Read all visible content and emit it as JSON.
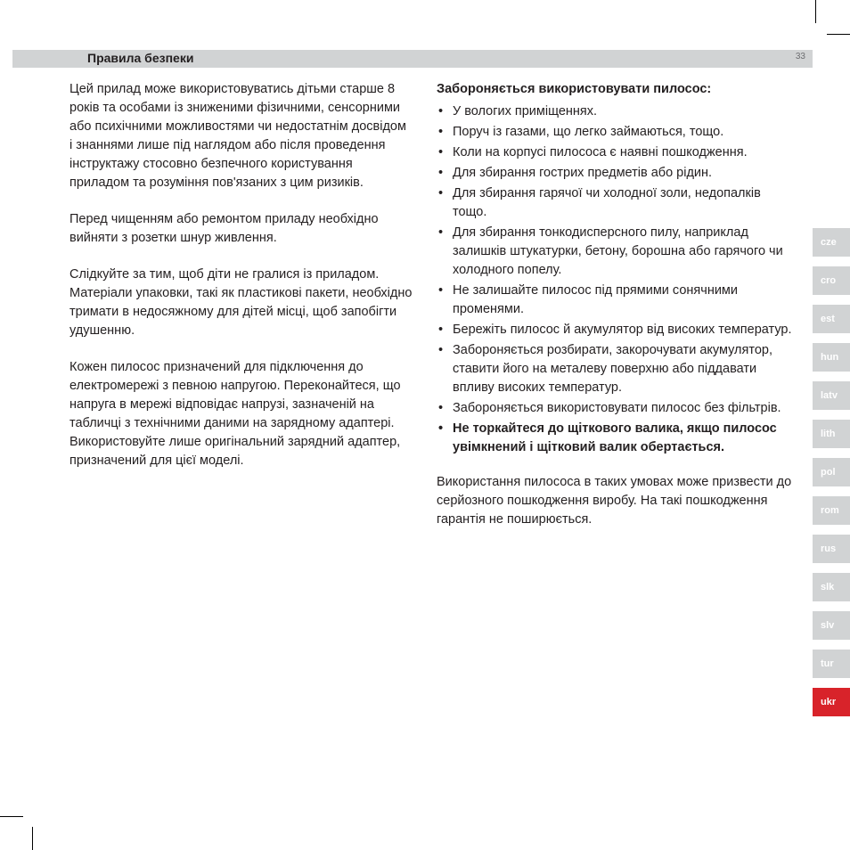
{
  "header": {
    "title": "Правила безпеки",
    "page_number": "33"
  },
  "left_column": {
    "p1": "Цей прилад може використовуватись дітьми старше 8 років та особами із зниженими фізичними, сенсорними або психічними можливостями чи недостатнім досвідом і знаннями лише під наглядом або після проведення інструктажу стосовно безпечного користування приладом та розуміння пов'язаних з цим ризиків.",
    "p2": "Перед чищенням або ремонтом приладу необхідно вийняти з розетки шнур живлення.",
    "p3": "Слідкуйте за тим, щоб діти не гралися із приладом. Матеріали упаковки, такі як пластикові пакети, необхідно тримати в недосяжному для дітей місці, щоб запобігти удушенню.",
    "p4": "Кожен пилосос призначений для підключення до електромережі з певною напругою. Переконайтеся, що напруга в мережі відповідає напрузі, зазначеній на табличці з технічними даними на зарядному адаптері. Використовуйте лише оригінальний зарядний адаптер, призначений для цієї моделі."
  },
  "right_column": {
    "title": "Забороняється використовувати пилосос:",
    "items": [
      {
        "text": "У вологих приміщеннях.",
        "bold": false
      },
      {
        "text": "Поруч із газами, що легко займаються, тощо.",
        "bold": false
      },
      {
        "text": "Коли на корпусі пилососа є наявні пошкодження.",
        "bold": false
      },
      {
        "text": "Для збирання гострих предметів або рідин.",
        "bold": false
      },
      {
        "text": "Для збирання гарячої чи холодної золи, недопалків тощо.",
        "bold": false
      },
      {
        "text": "Для збирання тонкодисперсного пилу, наприклад залишків штукатурки, бетону, борошна або гарячого чи холодного попелу.",
        "bold": false
      },
      {
        "text": "Не залишайте пилосос під прямими сонячними променями.",
        "bold": false
      },
      {
        "text": "Бережіть пилосос й акумулятор від високих температур.",
        "bold": false
      },
      {
        "text": "Забороняється розбирати, закорочувати акумулятор, ставити його на металеву поверхню або піддавати впливу високих температур.",
        "bold": false
      },
      {
        "text": "Забороняється використовувати пилосос без фільтрів.",
        "bold": false
      },
      {
        "text": "Не торкайтеся до щіткового валика, якщо пилосос увімкнений і щітковий валик обертається.",
        "bold": true
      }
    ],
    "closing": "Використання пилососа в таких умовах може призвести до серйозного пошкодження виробу. На такі пошкодження гарантія не поширюється."
  },
  "lang_tabs": [
    {
      "code": "cze",
      "active": false
    },
    {
      "code": "cro",
      "active": false
    },
    {
      "code": "est",
      "active": false
    },
    {
      "code": "hun",
      "active": false
    },
    {
      "code": "latv",
      "active": false
    },
    {
      "code": "lith",
      "active": false
    },
    {
      "code": "pol",
      "active": false
    },
    {
      "code": "rom",
      "active": false
    },
    {
      "code": "rus",
      "active": false
    },
    {
      "code": "slk",
      "active": false
    },
    {
      "code": "slv",
      "active": false
    },
    {
      "code": "tur",
      "active": false
    },
    {
      "code": "ukr",
      "active": true
    }
  ],
  "colors": {
    "header_bg": "#d1d3d4",
    "tab_bg": "#d1d3d4",
    "tab_active_bg": "#d8232a",
    "text": "#231f20",
    "page_num": "#6d6e71"
  }
}
